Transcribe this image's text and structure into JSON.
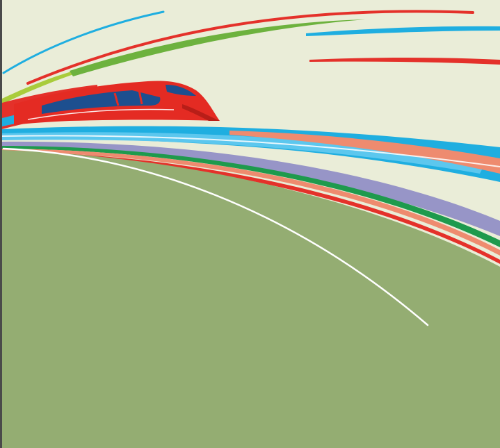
{
  "illustration": {
    "subject": "high-speed-train",
    "colors": {
      "sky": "#EAEDD8",
      "ground": "#94AD72",
      "train_body": "#E42B23",
      "train_window": "#1D4F8F",
      "trail_red": "#E4312A",
      "trail_green": "#6DB23E",
      "trail_lime": "#A9CC3C",
      "trail_sky_blue": "#1FAEE0",
      "trail_light_blue": "#5CC7EE",
      "trail_salmon": "#EE8B6F",
      "trail_lavender": "#9795C7",
      "trail_dark_green": "#1E9A4D",
      "highlight": "#FFFFFF"
    }
  }
}
